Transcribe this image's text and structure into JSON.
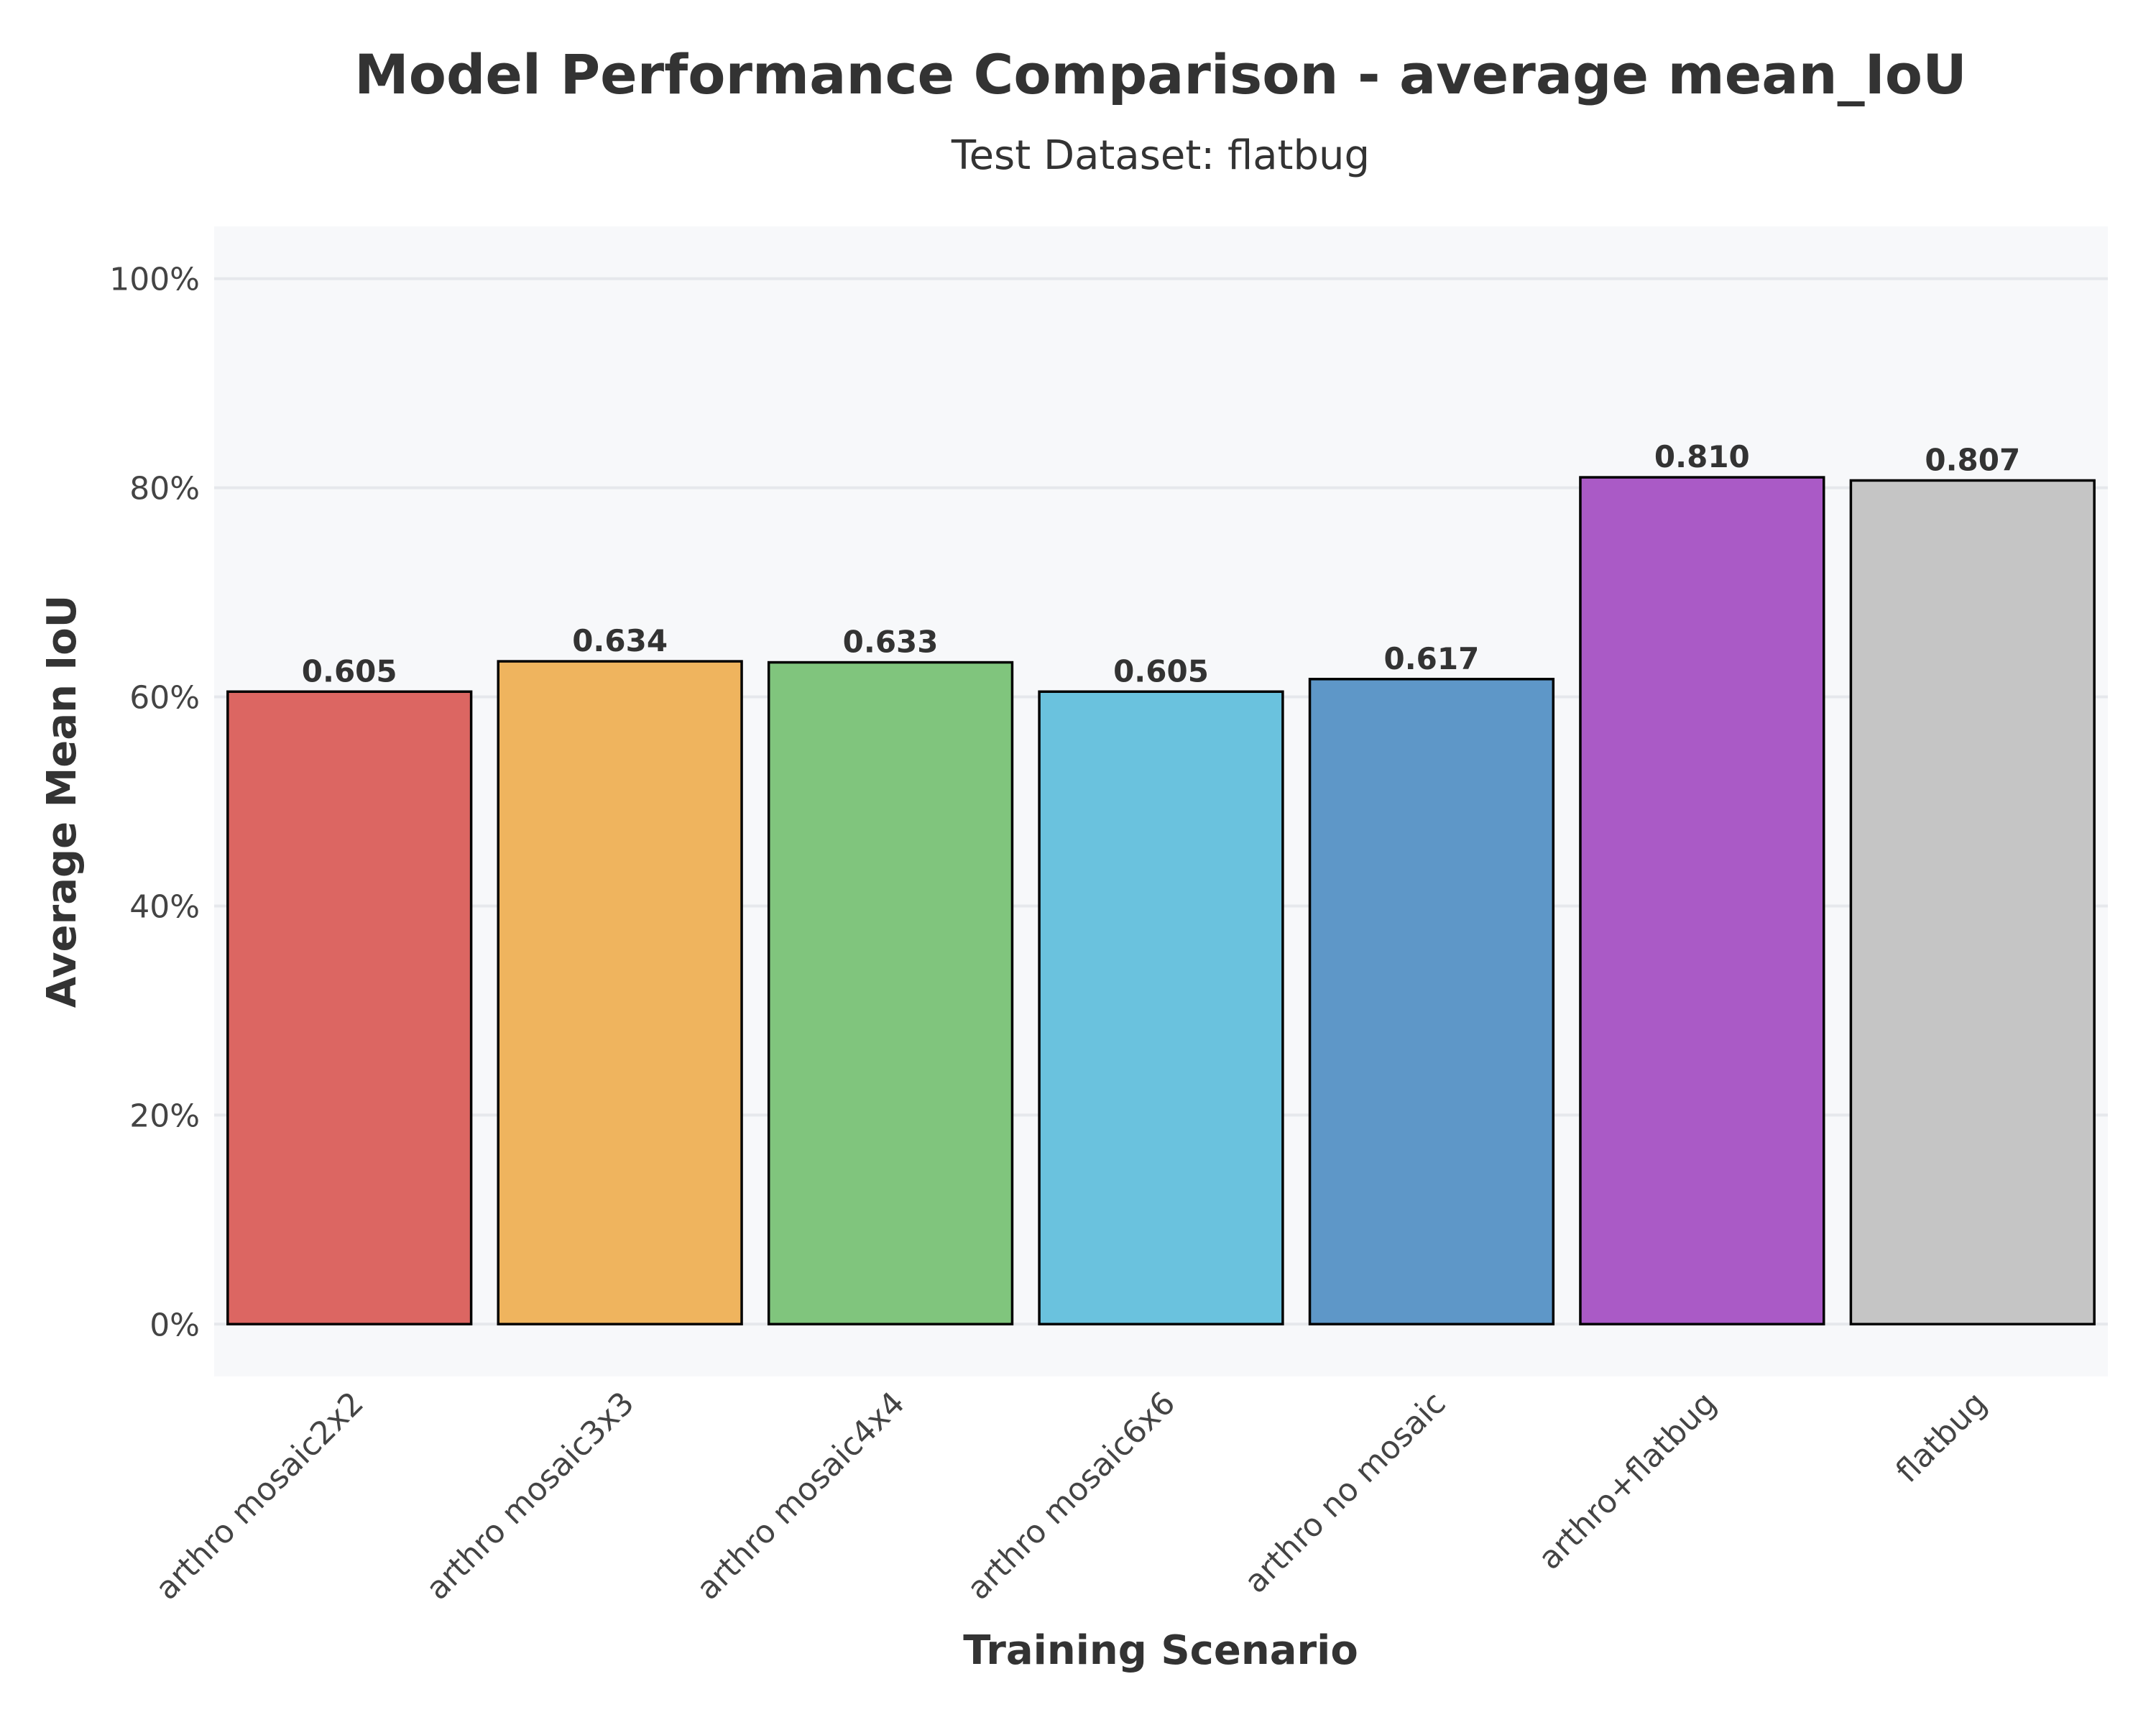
{
  "chart_data": {
    "type": "bar",
    "title": "Model Performance Comparison - average mean_IoU",
    "subtitle": "Test Dataset: flatbug",
    "xlabel": "Training Scenario",
    "ylabel": "Average Mean IoU",
    "categories": [
      "arthro mosaic2x2",
      "arthro mosaic3x3",
      "arthro mosaic4x4",
      "arthro mosaic6x6",
      "arthro no mosaic",
      "arthro+flatbug",
      "flatbug"
    ],
    "values": [
      0.605,
      0.634,
      0.633,
      0.605,
      0.617,
      0.81,
      0.807
    ],
    "value_labels": [
      "0.605",
      "0.634",
      "0.633",
      "0.605",
      "0.617",
      "0.810",
      "0.807"
    ],
    "colors": [
      "#dc6662",
      "#efb45e",
      "#80c57d",
      "#6ac2de",
      "#5e97c8",
      "#aa5ac6",
      "#c5c5c5"
    ],
    "ylim": [
      -0.05,
      1.05
    ],
    "yticks": [
      0,
      0.2,
      0.4,
      0.6,
      0.8,
      1.0
    ],
    "ytick_labels": [
      "0%",
      "20%",
      "40%",
      "60%",
      "80%",
      "100%"
    ],
    "grid": true,
    "plot_background": "#f7f8fa",
    "grid_color": "#e6e8ec",
    "bar_edge_color": "#000000"
  }
}
